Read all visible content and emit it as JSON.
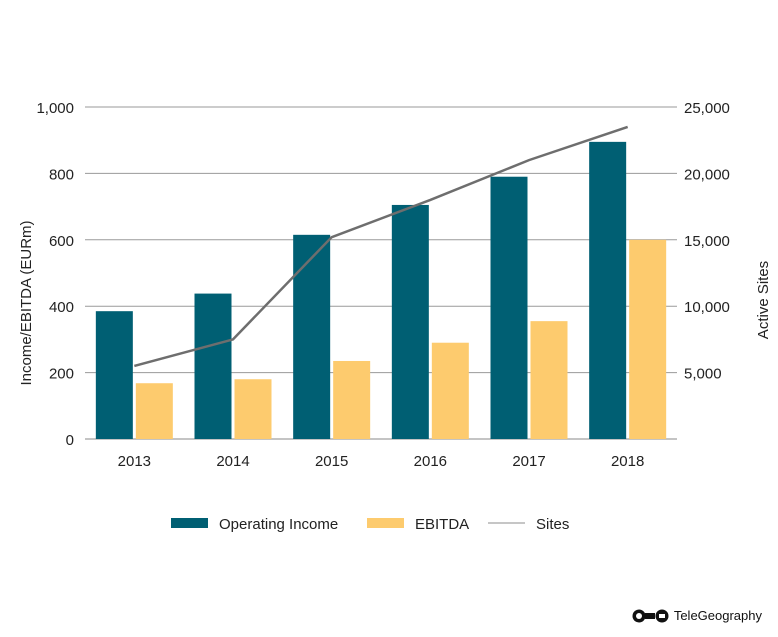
{
  "chart_data": {
    "type": "bar",
    "title": "",
    "categories": [
      "2013",
      "2014",
      "2015",
      "2016",
      "2017",
      "2018"
    ],
    "series": [
      {
        "name": "Operating Income",
        "kind": "bar",
        "axis": "left",
        "color": "#005f73",
        "values": [
          385,
          438,
          615,
          705,
          790,
          895
        ]
      },
      {
        "name": "EBITDA",
        "kind": "bar",
        "axis": "left",
        "color": "#fdcb6e",
        "values": [
          168,
          180,
          235,
          290,
          355,
          600
        ]
      },
      {
        "name": "Sites",
        "kind": "line",
        "axis": "right",
        "color": "#6e6e6e",
        "values": [
          5500,
          7500,
          15200,
          18000,
          21000,
          23500
        ]
      }
    ],
    "ylabel": "Income/EBITDA (EURm)",
    "ylabel_right": "Active Sites",
    "ylim": [
      0,
      1000
    ],
    "ylim_right": [
      0,
      25000
    ],
    "yticks": [
      "0",
      "200",
      "400",
      "600",
      "800",
      "1,000"
    ],
    "yticks_right": [
      "5,000",
      "10,000",
      "15,000",
      "20,000",
      "25,000"
    ],
    "grid": true,
    "legend_position": "bottom"
  },
  "brand": {
    "name": "TeleGeography"
  }
}
